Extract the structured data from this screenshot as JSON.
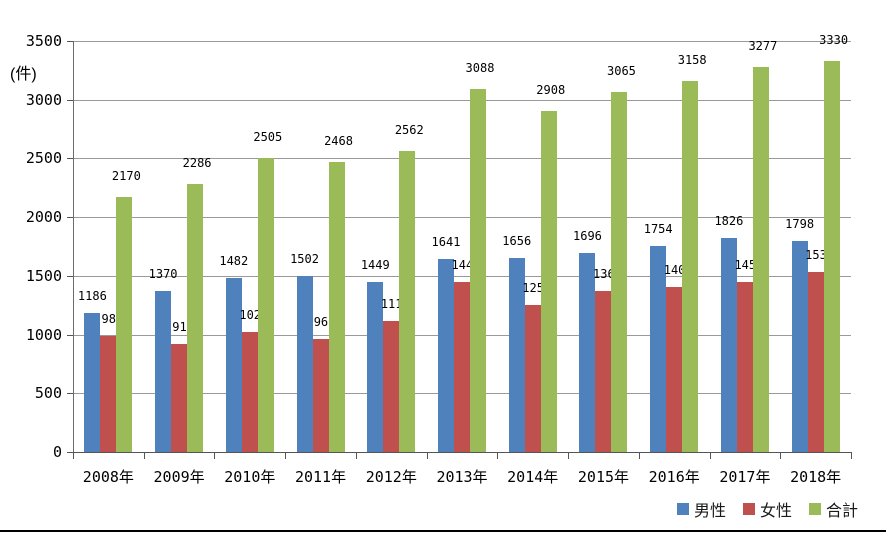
{
  "chart_data": {
    "type": "bar",
    "title": "",
    "unit_label": "(件)",
    "categories": [
      "2008年",
      "2009年",
      "2010年",
      "2011年",
      "2012年",
      "2013年",
      "2014年",
      "2015年",
      "2016年",
      "2017年",
      "2018年"
    ],
    "series": [
      {
        "name": "男性",
        "color": "#4F81BD",
        "values": [
          1186,
          1370,
          1482,
          1502,
          1449,
          1641,
          1656,
          1696,
          1754,
          1826,
          1798
        ]
      },
      {
        "name": "女性",
        "color": "#C0504D",
        "values": [
          984,
          916,
          1023,
          966,
          1113,
          1447,
          1252,
          1369,
          1404,
          1451,
          1532
        ]
      },
      {
        "name": "合計",
        "color": "#9BBB59",
        "values": [
          2170,
          2286,
          2505,
          2468,
          2562,
          3088,
          2908,
          3065,
          3158,
          3277,
          3330
        ]
      }
    ],
    "y_axis": {
      "min": 0,
      "max": 3500,
      "step": 500,
      "tick_labels": [
        "0",
        "500",
        "1000",
        "1500",
        "2000",
        "2500",
        "3000",
        "3500"
      ]
    },
    "xlabel": "",
    "ylabel": "(件)",
    "grid": true,
    "data_labels": true,
    "legend_position": "bottom-right",
    "gridline_color": "#9a9a9a",
    "axis_color": "#555555"
  }
}
